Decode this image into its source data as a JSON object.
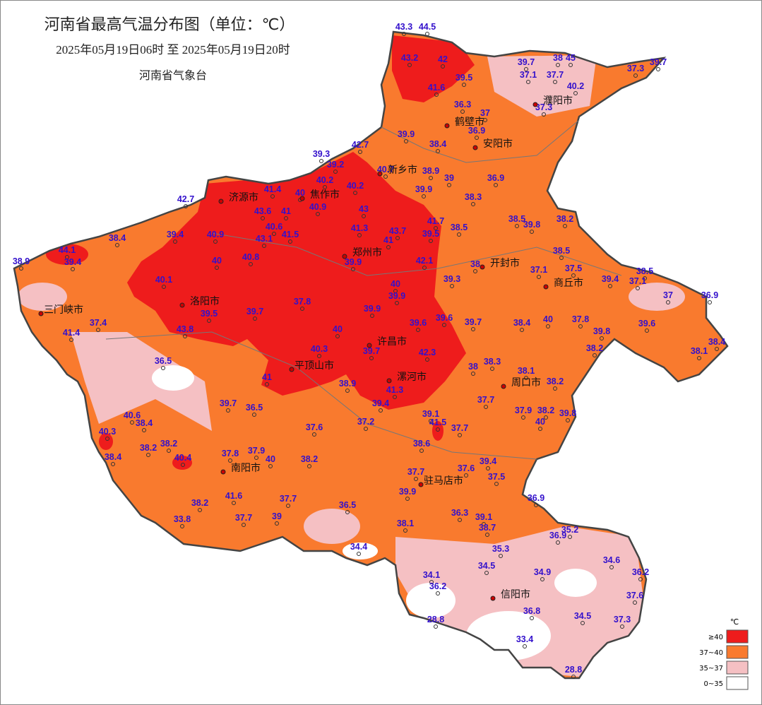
{
  "header": {
    "title": "河南省最高气温分布图（单位：℃）",
    "period": "2025年05月19日06时  至  2025年05月19日20时",
    "issuer": "河南省气象台"
  },
  "cities": [
    "濮阳市",
    "鹤壁市",
    "安阳市",
    "新乡市",
    "济源市",
    "焦作市",
    "郑州市",
    "开封市",
    "商丘市",
    "三门峡市",
    "洛阳市",
    "许昌市",
    "平顶山市",
    "漯河市",
    "周口市",
    "南阳市",
    "驻马店市",
    "信阳市"
  ],
  "stations": [
    43.3,
    44.5,
    43.2,
    42,
    39.5,
    41.6,
    36.3,
    37,
    36.9,
    39.7,
    38,
    45,
    37.1,
    37.7,
    40.2,
    37.3,
    39.7,
    37.3,
    39.9,
    38.4,
    42.7,
    39.3,
    39.2,
    40.7,
    38.9,
    39,
    40.2,
    40.2,
    41.4,
    40,
    39.9,
    36.9,
    38.3,
    42.7,
    43,
    40.9,
    43.6,
    41,
    41.7,
    38.5,
    38.5,
    38.2,
    39.8,
    39.4,
    40.9,
    40.6,
    41.5,
    41.3,
    43.7,
    39.5,
    43.1,
    38.4,
    44.1,
    38.9,
    39.4,
    40,
    40.8,
    41,
    42.1,
    39.9,
    38.5,
    38,
    37.1,
    37.5,
    38.5,
    40.1,
    39.4,
    37.1,
    40,
    39.9,
    39.3,
    37,
    36.9,
    37.8,
    39.5,
    39.7,
    39.9,
    39.6,
    39.6,
    39.7,
    38.4,
    40,
    37.8,
    39.6,
    37.4,
    41.4,
    40,
    39.8,
    43.8,
    40.3,
    39.7,
    38.2,
    38.1,
    38.4,
    36.5,
    38,
    38.3,
    38.1,
    42.3,
    41,
    38.9,
    41.3,
    39.4,
    38.2,
    37.7,
    39.7,
    36.5,
    39.1,
    41.5,
    37.7,
    37.9,
    38.2,
    39.8,
    40,
    40.6,
    38.4,
    37.2,
    37.6,
    40.3,
    38.6,
    38.2,
    38.2,
    37.8,
    37.9,
    40,
    38.2,
    40.4,
    38.4,
    39.4,
    37.7,
    37.6,
    37.5,
    39.9,
    41.6,
    38.2,
    37.7,
    36.9,
    36.5,
    36.3,
    39.1,
    37.7,
    39,
    38.1,
    38.7,
    35.2,
    36.9,
    34.4,
    35.3,
    34.5,
    34.9,
    34.6,
    36.2,
    34.1,
    36.2,
    37.6,
    36.8,
    34.5,
    37.3,
    28.8,
    33.4,
    28.8,
    33.8
  ],
  "legend": {
    "unit": "℃",
    "items": [
      {
        "label": "≥40",
        "color": "#ee1c1c"
      },
      {
        "label": "37~40",
        "color": "#f97a2e"
      },
      {
        "label": "35~37",
        "color": "#f5c0c3"
      },
      {
        "label": "0~35",
        "color": "#ffffff"
      }
    ]
  }
}
